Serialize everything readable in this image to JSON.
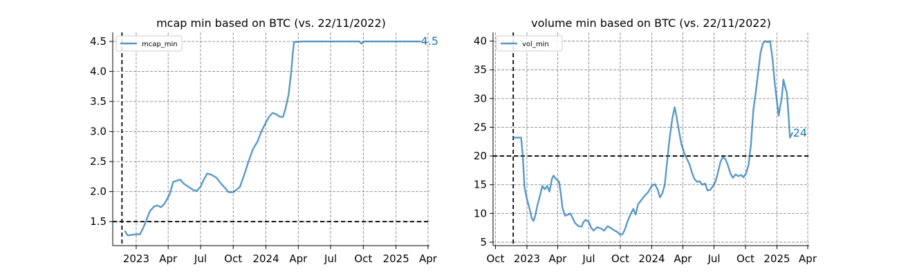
{
  "chart_data": [
    {
      "type": "line",
      "title": "mcap min based on BTC (vs. 22/11/2022)",
      "xlim": [
        "2022-10-27",
        "2025-04-05"
      ],
      "ylim": [
        1.1,
        4.65
      ],
      "x_ticks": [
        {
          "date": "2023-01-01",
          "label": "2023"
        },
        {
          "date": "2023-04-01",
          "label": "Apr"
        },
        {
          "date": "2023-07-01",
          "label": "Jul"
        },
        {
          "date": "2023-10-01",
          "label": "Oct"
        },
        {
          "date": "2024-01-01",
          "label": "2024"
        },
        {
          "date": "2024-04-01",
          "label": "Apr"
        },
        {
          "date": "2024-07-01",
          "label": "Jul"
        },
        {
          "date": "2024-10-01",
          "label": "Oct"
        },
        {
          "date": "2025-01-01",
          "label": "2025"
        },
        {
          "date": "2025-04-01",
          "label": "Apr"
        }
      ],
      "y_ticks": [
        {
          "value": 1.5,
          "label": "1.5"
        },
        {
          "value": 2.0,
          "label": "2.0"
        },
        {
          "value": 2.5,
          "label": "2.5"
        },
        {
          "value": 3.0,
          "label": "3.0"
        },
        {
          "value": 3.5,
          "label": "3.5"
        },
        {
          "value": 4.0,
          "label": "4.0"
        },
        {
          "value": 4.5,
          "label": "4.5"
        }
      ],
      "ref_x": "2022-11-22",
      "ref_y": 1.5,
      "grid": true,
      "legend_position": "upper-left",
      "series": [
        {
          "name": "mcap_min",
          "color": "#1f77b4",
          "points": [
            [
              "2022-12-01",
              1.34
            ],
            [
              "2022-12-08",
              1.27
            ],
            [
              "2022-12-20",
              1.28
            ],
            [
              "2023-01-05",
              1.29
            ],
            [
              "2023-01-12",
              1.29
            ],
            [
              "2023-01-25",
              1.45
            ],
            [
              "2023-02-08",
              1.67
            ],
            [
              "2023-02-20",
              1.75
            ],
            [
              "2023-03-01",
              1.77
            ],
            [
              "2023-03-12",
              1.74
            ],
            [
              "2023-03-22",
              1.8
            ],
            [
              "2023-04-05",
              1.95
            ],
            [
              "2023-04-15",
              2.16
            ],
            [
              "2023-04-25",
              2.18
            ],
            [
              "2023-05-05",
              2.2
            ],
            [
              "2023-05-15",
              2.13
            ],
            [
              "2023-05-28",
              2.08
            ],
            [
              "2023-06-10",
              2.03
            ],
            [
              "2023-06-20",
              2.01
            ],
            [
              "2023-07-01",
              2.08
            ],
            [
              "2023-07-10",
              2.2
            ],
            [
              "2023-07-20",
              2.3
            ],
            [
              "2023-08-01",
              2.28
            ],
            [
              "2023-08-15",
              2.23
            ],
            [
              "2023-08-28",
              2.13
            ],
            [
              "2023-09-08",
              2.06
            ],
            [
              "2023-09-18",
              1.99
            ],
            [
              "2023-10-01",
              1.99
            ],
            [
              "2023-10-10",
              2.03
            ],
            [
              "2023-10-20",
              2.08
            ],
            [
              "2023-11-01",
              2.28
            ],
            [
              "2023-11-12",
              2.48
            ],
            [
              "2023-11-25",
              2.7
            ],
            [
              "2023-12-08",
              2.83
            ],
            [
              "2023-12-20",
              3.01
            ],
            [
              "2024-01-01",
              3.15
            ],
            [
              "2024-01-10",
              3.25
            ],
            [
              "2024-01-20",
              3.31
            ],
            [
              "2024-02-01",
              3.28
            ],
            [
              "2024-02-08",
              3.25
            ],
            [
              "2024-02-18",
              3.24
            ],
            [
              "2024-02-25",
              3.38
            ],
            [
              "2024-03-05",
              3.62
            ],
            [
              "2024-03-12",
              3.98
            ],
            [
              "2024-03-17",
              4.32
            ],
            [
              "2024-03-20",
              4.49
            ],
            [
              "2024-04-15",
              4.5
            ],
            [
              "2024-06-01",
              4.5
            ],
            [
              "2024-08-01",
              4.5
            ],
            [
              "2024-09-10",
              4.5
            ],
            [
              "2024-09-20",
              4.5
            ],
            [
              "2024-09-26",
              4.46
            ],
            [
              "2024-10-02",
              4.5
            ],
            [
              "2024-10-20",
              4.5
            ],
            [
              "2024-12-15",
              4.5
            ],
            [
              "2025-02-20",
              4.5
            ],
            [
              "2025-03-10",
              4.5
            ]
          ],
          "end_label": "4.5"
        }
      ]
    },
    {
      "type": "line",
      "title": "volume min based on BTC (vs. 22/11/2022)",
      "xlim": [
        "2022-09-24",
        "2025-04-05"
      ],
      "ylim": [
        4.4,
        41.5
      ],
      "x_ticks": [
        {
          "date": "2022-10-01",
          "label": "Oct"
        },
        {
          "date": "2023-01-01",
          "label": "2023"
        },
        {
          "date": "2023-04-01",
          "label": "Apr"
        },
        {
          "date": "2023-07-01",
          "label": "Jul"
        },
        {
          "date": "2023-10-01",
          "label": "Oct"
        },
        {
          "date": "2024-01-01",
          "label": "2024"
        },
        {
          "date": "2024-04-01",
          "label": "Apr"
        },
        {
          "date": "2024-07-01",
          "label": "Jul"
        },
        {
          "date": "2024-10-01",
          "label": "Oct"
        },
        {
          "date": "2025-01-01",
          "label": "2025"
        },
        {
          "date": "2025-04-01",
          "label": "Apr"
        }
      ],
      "y_ticks": [
        {
          "value": 5,
          "label": "5"
        },
        {
          "value": 10,
          "label": "10"
        },
        {
          "value": 15,
          "label": "15"
        },
        {
          "value": 20,
          "label": "20"
        },
        {
          "value": 25,
          "label": "25"
        },
        {
          "value": 30,
          "label": "30"
        },
        {
          "value": 35,
          "label": "35"
        },
        {
          "value": 40,
          "label": "40"
        }
      ],
      "ref_x": "2022-11-22",
      "ref_y": 20,
      "grid": true,
      "legend_position": "upper-left",
      "series": [
        {
          "name": "vol_min",
          "color": "#1f77b4",
          "points": [
            [
              "2022-11-22",
              23.2
            ],
            [
              "2022-12-05",
              23.2
            ],
            [
              "2022-12-15",
              23.2
            ],
            [
              "2022-12-20",
              20.0
            ],
            [
              "2022-12-25",
              14.5
            ],
            [
              "2023-01-01",
              12.5
            ],
            [
              "2023-01-08",
              11.0
            ],
            [
              "2023-01-15",
              9.2
            ],
            [
              "2023-01-20",
              8.7
            ],
            [
              "2023-01-25",
              9.5
            ],
            [
              "2023-02-01",
              11.5
            ],
            [
              "2023-02-10",
              13.5
            ],
            [
              "2023-02-15",
              14.8
            ],
            [
              "2023-02-22",
              14.2
            ],
            [
              "2023-03-01",
              14.8
            ],
            [
              "2023-03-08",
              13.8
            ],
            [
              "2023-03-15",
              16.0
            ],
            [
              "2023-03-20",
              16.6
            ],
            [
              "2023-03-27",
              16.0
            ],
            [
              "2023-04-05",
              15.5
            ],
            [
              "2023-04-10",
              13.5
            ],
            [
              "2023-04-15",
              11.0
            ],
            [
              "2023-04-22",
              9.6
            ],
            [
              "2023-05-01",
              9.8
            ],
            [
              "2023-05-08",
              10.0
            ],
            [
              "2023-05-15",
              9.2
            ],
            [
              "2023-05-22",
              8.3
            ],
            [
              "2023-06-01",
              7.8
            ],
            [
              "2023-06-10",
              7.7
            ],
            [
              "2023-06-15",
              8.5
            ],
            [
              "2023-06-22",
              8.9
            ],
            [
              "2023-07-01",
              8.5
            ],
            [
              "2023-07-08",
              7.5
            ],
            [
              "2023-07-15",
              7.0
            ],
            [
              "2023-07-25",
              7.6
            ],
            [
              "2023-08-05",
              7.4
            ],
            [
              "2023-08-15",
              7.0
            ],
            [
              "2023-08-25",
              7.8
            ],
            [
              "2023-09-05",
              7.4
            ],
            [
              "2023-09-15",
              7.0
            ],
            [
              "2023-09-22",
              6.8
            ],
            [
              "2023-10-01",
              6.3
            ],
            [
              "2023-10-08",
              6.4
            ],
            [
              "2023-10-15",
              7.3
            ],
            [
              "2023-10-22",
              8.6
            ],
            [
              "2023-11-01",
              10.0
            ],
            [
              "2023-11-08",
              10.8
            ],
            [
              "2023-11-15",
              9.8
            ],
            [
              "2023-11-22",
              11.6
            ],
            [
              "2023-12-01",
              12.3
            ],
            [
              "2023-12-10",
              13.0
            ],
            [
              "2023-12-20",
              13.6
            ],
            [
              "2024-01-01",
              14.8
            ],
            [
              "2024-01-10",
              15.1
            ],
            [
              "2024-01-18",
              14.2
            ],
            [
              "2024-01-25",
              12.8
            ],
            [
              "2024-02-01",
              13.5
            ],
            [
              "2024-02-08",
              15.0
            ],
            [
              "2024-02-15",
              19.0
            ],
            [
              "2024-02-22",
              23.0
            ],
            [
              "2024-03-01",
              26.5
            ],
            [
              "2024-03-08",
              28.5
            ],
            [
              "2024-03-13",
              27.0
            ],
            [
              "2024-03-20",
              24.5
            ],
            [
              "2024-03-28",
              22.0
            ],
            [
              "2024-04-05",
              20.5
            ],
            [
              "2024-04-12",
              19.6
            ],
            [
              "2024-04-20",
              18.6
            ],
            [
              "2024-04-28",
              17.0
            ],
            [
              "2024-05-05",
              16.0
            ],
            [
              "2024-05-12",
              15.5
            ],
            [
              "2024-05-20",
              15.6
            ],
            [
              "2024-05-28",
              15.0
            ],
            [
              "2024-06-05",
              15.2
            ],
            [
              "2024-06-12",
              14.0
            ],
            [
              "2024-06-20",
              14.1
            ],
            [
              "2024-06-28",
              14.8
            ],
            [
              "2024-07-05",
              15.5
            ],
            [
              "2024-07-12",
              17.0
            ],
            [
              "2024-07-20",
              19.0
            ],
            [
              "2024-07-27",
              19.8
            ],
            [
              "2024-08-03",
              19.5
            ],
            [
              "2024-08-10",
              18.5
            ],
            [
              "2024-08-18",
              17.0
            ],
            [
              "2024-08-25",
              16.2
            ],
            [
              "2024-09-02",
              16.8
            ],
            [
              "2024-09-10",
              16.5
            ],
            [
              "2024-09-18",
              16.7
            ],
            [
              "2024-09-25",
              16.3
            ],
            [
              "2024-10-03",
              17.0
            ],
            [
              "2024-10-10",
              18.5
            ],
            [
              "2024-10-17",
              22.0
            ],
            [
              "2024-10-24",
              28.0
            ],
            [
              "2024-10-31",
              31.0
            ],
            [
              "2024-11-07",
              34.5
            ],
            [
              "2024-11-14",
              38.0
            ],
            [
              "2024-11-21",
              39.6
            ],
            [
              "2024-11-28",
              40.0
            ],
            [
              "2024-12-05",
              39.8
            ],
            [
              "2024-12-12",
              40.0
            ],
            [
              "2024-12-19",
              37.0
            ],
            [
              "2024-12-26",
              32.5
            ],
            [
              "2025-01-02",
              29.0
            ],
            [
              "2025-01-06",
              27.0
            ],
            [
              "2025-01-10",
              28.5
            ],
            [
              "2025-01-15",
              30.0
            ],
            [
              "2025-01-20",
              33.3
            ],
            [
              "2025-01-25",
              32.0
            ],
            [
              "2025-01-30",
              31.0
            ],
            [
              "2025-02-04",
              27.0
            ],
            [
              "2025-02-08",
              23.2
            ],
            [
              "2025-02-15",
              24.0
            ]
          ],
          "end_label": "24"
        }
      ]
    }
  ]
}
